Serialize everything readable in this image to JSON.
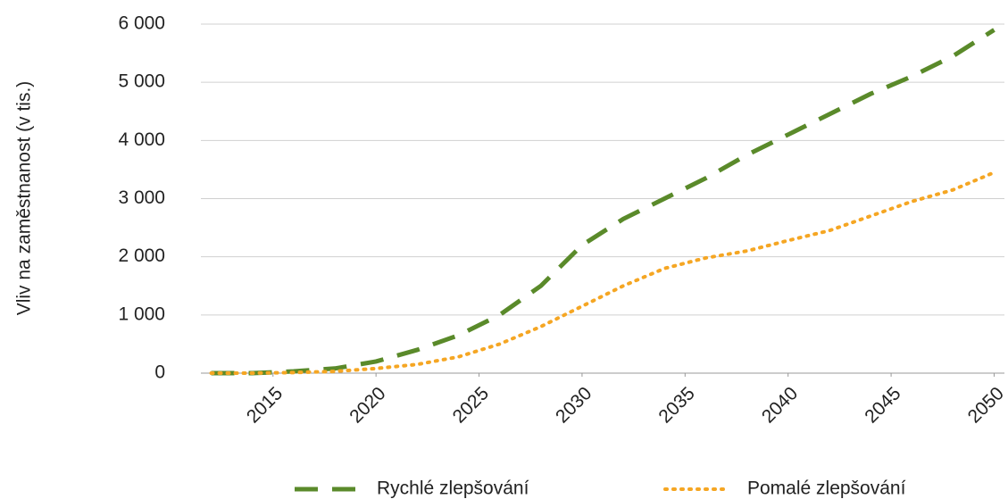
{
  "chart_data": {
    "type": "line",
    "y_label": "Vliv na zaměstnanost (v tis.)",
    "x": [
      2012,
      2014,
      2016,
      2018,
      2020,
      2022,
      2024,
      2026,
      2028,
      2030,
      2032,
      2034,
      2036,
      2038,
      2040,
      2042,
      2044,
      2046,
      2048,
      2050
    ],
    "series": [
      {
        "name": "Rychlé zlepšování",
        "color": "#5a8a2a",
        "dash": "dashed",
        "values": [
          0,
          0,
          30,
          80,
          200,
          400,
          650,
          1000,
          1500,
          2200,
          2650,
          3000,
          3350,
          3750,
          4100,
          4450,
          4800,
          5100,
          5450,
          5900
        ]
      },
      {
        "name": "Pomalé zlepšování",
        "color": "#f5a623",
        "dash": "dotted",
        "values": [
          0,
          0,
          10,
          30,
          80,
          150,
          280,
          500,
          800,
          1150,
          1500,
          1800,
          1980,
          2100,
          2280,
          2450,
          2700,
          2950,
          3150,
          3450
        ]
      }
    ],
    "xlim": [
      2011.5,
      2050.5
    ],
    "xticks": [
      2015,
      2020,
      2025,
      2030,
      2035,
      2040,
      2045,
      2050
    ],
    "ylim": [
      0,
      6000
    ],
    "yticks": [
      0,
      {
        "value": 1000,
        "label": "1 000"
      },
      {
        "value": 2000,
        "label": "2 000"
      },
      {
        "value": 3000,
        "label": "3 000"
      },
      {
        "value": 4000,
        "label": "4 000"
      },
      {
        "value": 5000,
        "label": "5 000"
      },
      {
        "value": 6000,
        "label": "6 000"
      }
    ],
    "grid": true,
    "legend": "bottom"
  }
}
